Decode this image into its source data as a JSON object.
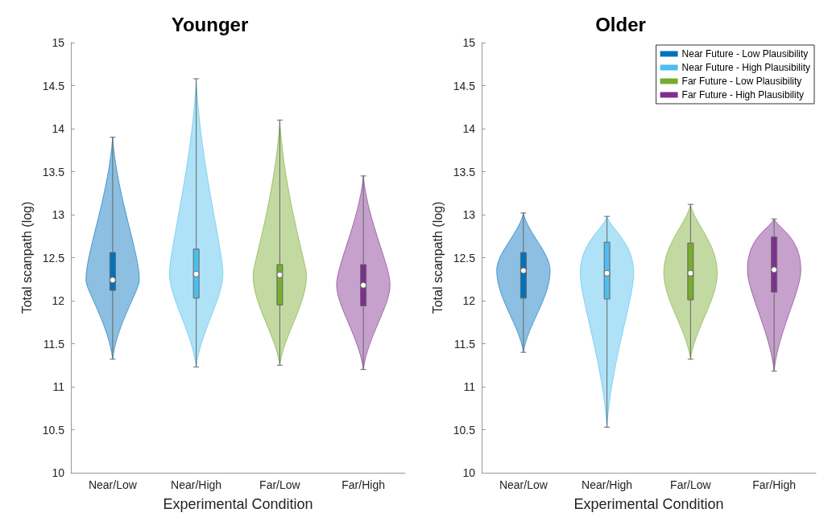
{
  "chart_data": [
    {
      "type": "box",
      "title": "Younger",
      "xlabel": "Experimental Condition",
      "ylabel": "Total scanpath (log)",
      "categories": [
        "Near/Low",
        "Near/High",
        "Far/Low",
        "Far/High"
      ],
      "ylim": [
        10,
        15
      ],
      "yticks": [
        10,
        10.5,
        11,
        11.5,
        12,
        12.5,
        13,
        13.5,
        14,
        14.5,
        15
      ],
      "grid": false,
      "legend": false,
      "series": [
        {
          "color": "#0072bd",
          "boxes": [
            {
              "low": 11.32,
              "q1": 12.12,
              "median": 12.24,
              "q3": 12.56,
              "high": 13.9
            },
            null,
            null,
            null
          ]
        },
        {
          "color": "#4dbeee",
          "boxes": [
            null,
            {
              "low": 11.23,
              "q1": 12.03,
              "median": 12.31,
              "q3": 12.6,
              "high": 14.58
            },
            null,
            null
          ]
        },
        {
          "color": "#77ac30",
          "boxes": [
            null,
            null,
            {
              "low": 11.25,
              "q1": 11.95,
              "median": 12.3,
              "q3": 12.42,
              "high": 14.1
            },
            null
          ]
        },
        {
          "color": "#7e2f8e",
          "boxes": [
            null,
            null,
            null,
            {
              "low": 11.2,
              "q1": 11.94,
              "median": 12.18,
              "q3": 12.42,
              "high": 13.45
            }
          ]
        }
      ]
    },
    {
      "type": "box",
      "title": "Older",
      "xlabel": "Experimental Condition",
      "ylabel": "Total scanpath (log)",
      "categories": [
        "Near/Low",
        "Near/High",
        "Far/Low",
        "Far/High"
      ],
      "ylim": [
        10,
        15
      ],
      "yticks": [
        10,
        10.5,
        11,
        11.5,
        12,
        12.5,
        13,
        13.5,
        14,
        14.5,
        15
      ],
      "grid": false,
      "legend": "top right",
      "series": [
        {
          "name": "Near Future - Low Plausibility",
          "color": "#0072bd",
          "boxes": [
            {
              "low": 11.4,
              "q1": 12.03,
              "median": 12.35,
              "q3": 12.56,
              "high": 13.02
            },
            null,
            null,
            null
          ]
        },
        {
          "name": "Near Future - High Plausibility",
          "color": "#4dbeee",
          "boxes": [
            null,
            {
              "low": 10.53,
              "q1": 12.02,
              "median": 12.32,
              "q3": 12.68,
              "high": 12.98
            },
            null,
            null
          ]
        },
        {
          "name": "Far Future - Low Plausibility",
          "color": "#77ac30",
          "boxes": [
            null,
            null,
            {
              "low": 11.32,
              "q1": 12.01,
              "median": 12.32,
              "q3": 12.67,
              "high": 13.12
            },
            null
          ]
        },
        {
          "name": "Far Future - High Plausibility",
          "color": "#7e2f8e",
          "boxes": [
            null,
            null,
            null,
            {
              "low": 11.18,
              "q1": 12.1,
              "median": 12.36,
              "q3": 12.74,
              "high": 12.95
            }
          ]
        }
      ]
    }
  ]
}
